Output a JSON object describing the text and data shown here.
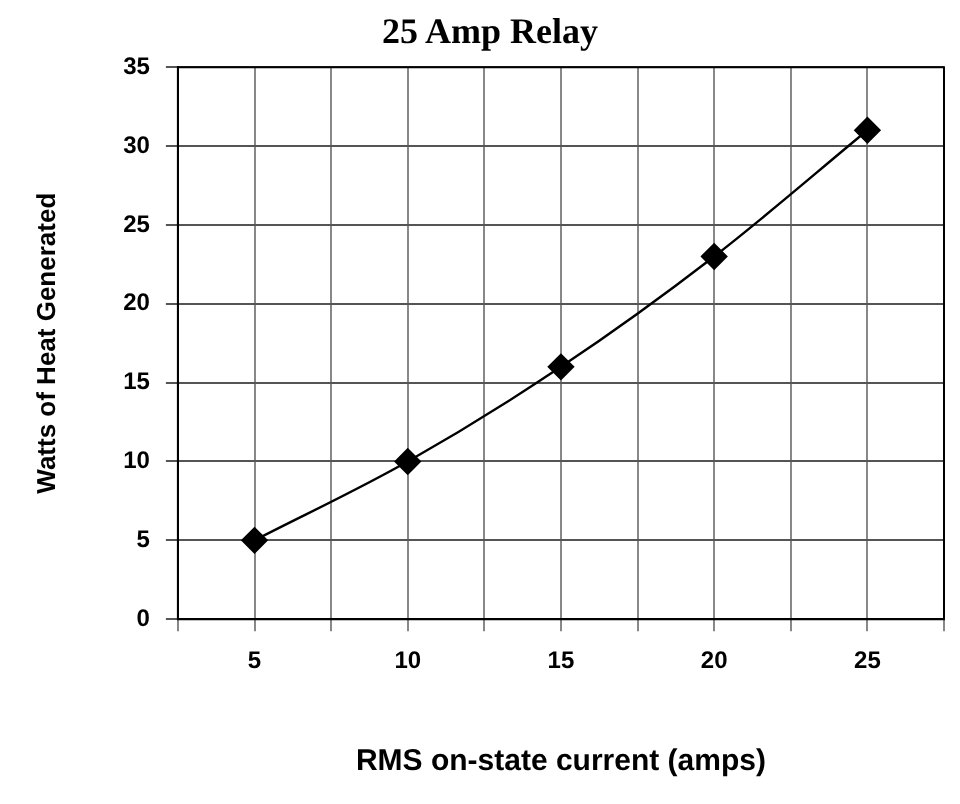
{
  "chart_data": {
    "type": "line",
    "title": "25 Amp Relay",
    "xlabel": "RMS on-state current (amps)",
    "ylabel": "Watts of Heat Generated",
    "x": [
      5,
      10,
      15,
      20,
      25
    ],
    "series": [
      {
        "color": "#000000",
        "values": [
          5,
          10,
          16,
          23,
          31
        ]
      }
    ],
    "xlim": [
      2.5,
      27.5
    ],
    "xticks": [
      {
        "value": 2.5,
        "label": null
      },
      5,
      {
        "value": 7.5,
        "label": null
      },
      10,
      {
        "value": 12.5,
        "label": null
      },
      15,
      {
        "value": 17.5,
        "label": null
      },
      20,
      {
        "value": 22.5,
        "label": null
      },
      25,
      {
        "value": 27.5,
        "label": null
      }
    ],
    "ylim": [
      0,
      35
    ],
    "yticks": [
      0,
      5,
      10,
      15,
      20,
      25,
      30,
      35
    ],
    "grid": true,
    "legend": false,
    "marker": "diamond",
    "line_style": "solid"
  }
}
